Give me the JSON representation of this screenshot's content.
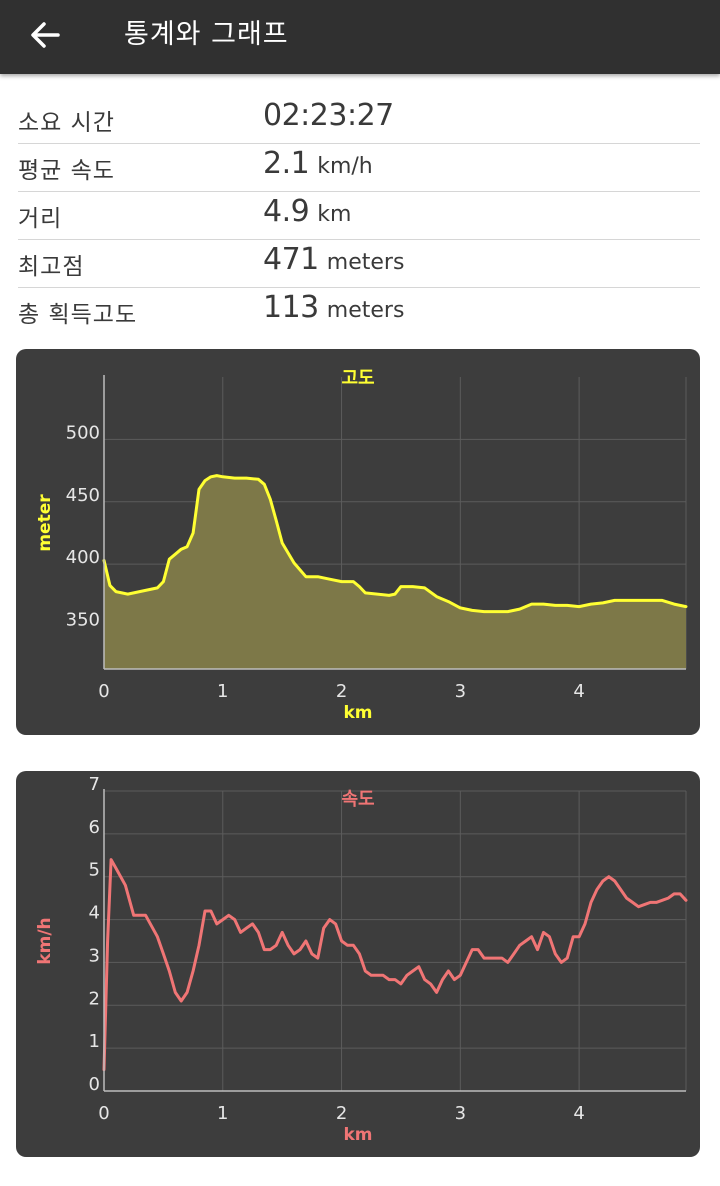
{
  "appbar": {
    "title": "통계와 그래프",
    "back_icon": "arrow-left-icon"
  },
  "stats": [
    {
      "label": "소요 시간",
      "value": "02:23:27",
      "unit": ""
    },
    {
      "label": "평균 속도",
      "value": "2.1",
      "unit": "km/h"
    },
    {
      "label": "거리",
      "value": "4.9",
      "unit": "km"
    },
    {
      "label": "최고점",
      "value": "471",
      "unit": "meters"
    },
    {
      "label": "총 획득고도",
      "value": "113",
      "unit": "meters"
    }
  ],
  "chart_data": [
    {
      "type": "area",
      "title": "고도",
      "xlabel": "km",
      "ylabel": "meter",
      "xlim": [
        0,
        4.9
      ],
      "ylim": [
        316,
        550
      ],
      "x_ticks": [
        0,
        1,
        2,
        3,
        4
      ],
      "x_tick_labels": [
        "0",
        "1",
        "2",
        "3",
        "4"
      ],
      "y_ticks": [
        350,
        400,
        450,
        500
      ],
      "y_tick_labels": [
        "350",
        "400",
        "450",
        "500"
      ],
      "grid": true,
      "line_color": "#ffff33",
      "fill_color": "#7d7848",
      "title_color": "#ffff33",
      "series": [
        {
          "x": [
            0,
            0.05,
            0.1,
            0.2,
            0.3,
            0.4,
            0.45,
            0.5,
            0.55,
            0.6,
            0.65,
            0.7,
            0.75,
            0.8,
            0.85,
            0.9,
            0.95,
            1.0,
            1.1,
            1.2,
            1.3,
            1.35,
            1.4,
            1.45,
            1.5,
            1.6,
            1.7,
            1.8,
            1.9,
            2.0,
            2.1,
            2.15,
            2.2,
            2.3,
            2.4,
            2.45,
            2.5,
            2.6,
            2.7,
            2.8,
            2.9,
            3.0,
            3.1,
            3.2,
            3.3,
            3.4,
            3.5,
            3.6,
            3.7,
            3.8,
            3.9,
            4.0,
            4.1,
            4.2,
            4.3,
            4.4,
            4.5,
            4.6,
            4.7,
            4.8,
            4.9
          ],
          "y": [
            403,
            383,
            378,
            376,
            378,
            380,
            381,
            386,
            404,
            408,
            412,
            414,
            425,
            460,
            467,
            470,
            471,
            470,
            469,
            469,
            468,
            464,
            452,
            435,
            417,
            401,
            390,
            390,
            388,
            386,
            386,
            382,
            377,
            376,
            375,
            376,
            382,
            382,
            381,
            374,
            370,
            365,
            363,
            362,
            362,
            362,
            364,
            368,
            368,
            367,
            367,
            366,
            368,
            369,
            371,
            371,
            371,
            371,
            371,
            368,
            366
          ]
        }
      ]
    },
    {
      "type": "line",
      "title": "속도",
      "xlabel": "km",
      "ylabel": "km/h",
      "xlim": [
        0,
        4.9
      ],
      "ylim": [
        0,
        7
      ],
      "x_ticks": [
        0,
        1,
        2,
        3,
        4
      ],
      "x_tick_labels": [
        "0",
        "1",
        "2",
        "3",
        "4"
      ],
      "y_ticks": [
        0,
        1,
        2,
        3,
        4,
        5,
        6,
        7
      ],
      "y_tick_labels": [
        "0",
        "1",
        "2",
        "3",
        "4",
        "5",
        "6",
        "7"
      ],
      "grid": true,
      "line_color": "#f07575",
      "title_color": "#f07575",
      "series": [
        {
          "x": [
            0,
            0.03,
            0.06,
            0.1,
            0.18,
            0.25,
            0.35,
            0.45,
            0.5,
            0.55,
            0.6,
            0.65,
            0.7,
            0.75,
            0.8,
            0.85,
            0.9,
            0.95,
            1.0,
            1.05,
            1.1,
            1.15,
            1.2,
            1.25,
            1.3,
            1.35,
            1.4,
            1.45,
            1.5,
            1.55,
            1.6,
            1.65,
            1.7,
            1.75,
            1.8,
            1.85,
            1.9,
            1.95,
            2.0,
            2.05,
            2.1,
            2.15,
            2.2,
            2.25,
            2.3,
            2.35,
            2.4,
            2.45,
            2.5,
            2.55,
            2.6,
            2.65,
            2.7,
            2.75,
            2.8,
            2.85,
            2.9,
            2.95,
            3.0,
            3.05,
            3.1,
            3.15,
            3.2,
            3.3,
            3.35,
            3.4,
            3.45,
            3.5,
            3.55,
            3.6,
            3.65,
            3.7,
            3.75,
            3.8,
            3.85,
            3.9,
            3.95,
            4.0,
            4.05,
            4.1,
            4.15,
            4.2,
            4.25,
            4.3,
            4.35,
            4.4,
            4.45,
            4.5,
            4.55,
            4.6,
            4.65,
            4.7,
            4.75,
            4.8,
            4.85,
            4.9
          ],
          "y": [
            0.5,
            3.5,
            5.4,
            5.2,
            4.8,
            4.1,
            4.1,
            3.6,
            3.2,
            2.8,
            2.3,
            2.1,
            2.3,
            2.8,
            3.4,
            4.2,
            4.2,
            3.9,
            4.0,
            4.1,
            4.0,
            3.7,
            3.8,
            3.9,
            3.7,
            3.3,
            3.3,
            3.4,
            3.7,
            3.4,
            3.2,
            3.3,
            3.5,
            3.2,
            3.1,
            3.8,
            4.0,
            3.9,
            3.5,
            3.4,
            3.4,
            3.2,
            2.8,
            2.7,
            2.7,
            2.7,
            2.6,
            2.6,
            2.5,
            2.7,
            2.8,
            2.9,
            2.6,
            2.5,
            2.3,
            2.6,
            2.8,
            2.6,
            2.7,
            3.0,
            3.3,
            3.3,
            3.1,
            3.1,
            3.1,
            3.0,
            3.2,
            3.4,
            3.5,
            3.6,
            3.3,
            3.7,
            3.6,
            3.2,
            3.0,
            3.1,
            3.6,
            3.6,
            3.9,
            4.4,
            4.7,
            4.9,
            5.0,
            4.9,
            4.7,
            4.5,
            4.4,
            4.3,
            4.35,
            4.4,
            4.4,
            4.45,
            4.5,
            4.6,
            4.6,
            4.45
          ]
        }
      ]
    }
  ]
}
